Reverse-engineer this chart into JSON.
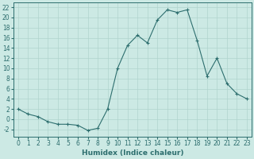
{
  "x": [
    0,
    1,
    2,
    3,
    4,
    5,
    6,
    7,
    8,
    9,
    10,
    11,
    12,
    13,
    14,
    15,
    16,
    17,
    18,
    19,
    20,
    21,
    22,
    23
  ],
  "y": [
    2,
    1,
    0.5,
    -0.5,
    -1,
    -1,
    -1.2,
    -2.2,
    -1.8,
    2,
    10,
    14.5,
    16.5,
    15,
    19.5,
    21.5,
    21,
    21.5,
    15.5,
    8.5,
    12,
    7,
    5,
    4
  ],
  "line_color": "#2d6e6e",
  "marker": "+",
  "marker_size": 3,
  "bg_color": "#cce9e4",
  "grid_color": "#b0d4ce",
  "xlabel": "Humidex (Indice chaleur)",
  "xlim": [
    -0.5,
    23.5
  ],
  "ylim": [
    -3.5,
    23
  ],
  "yticks": [
    -2,
    0,
    2,
    4,
    6,
    8,
    10,
    12,
    14,
    16,
    18,
    20,
    22
  ],
  "xticks": [
    0,
    1,
    2,
    3,
    4,
    5,
    6,
    7,
    8,
    9,
    10,
    11,
    12,
    13,
    14,
    15,
    16,
    17,
    18,
    19,
    20,
    21,
    22,
    23
  ],
  "title_color": "#2d6e6e",
  "label_fontsize": 6.5,
  "tick_fontsize": 5.5
}
